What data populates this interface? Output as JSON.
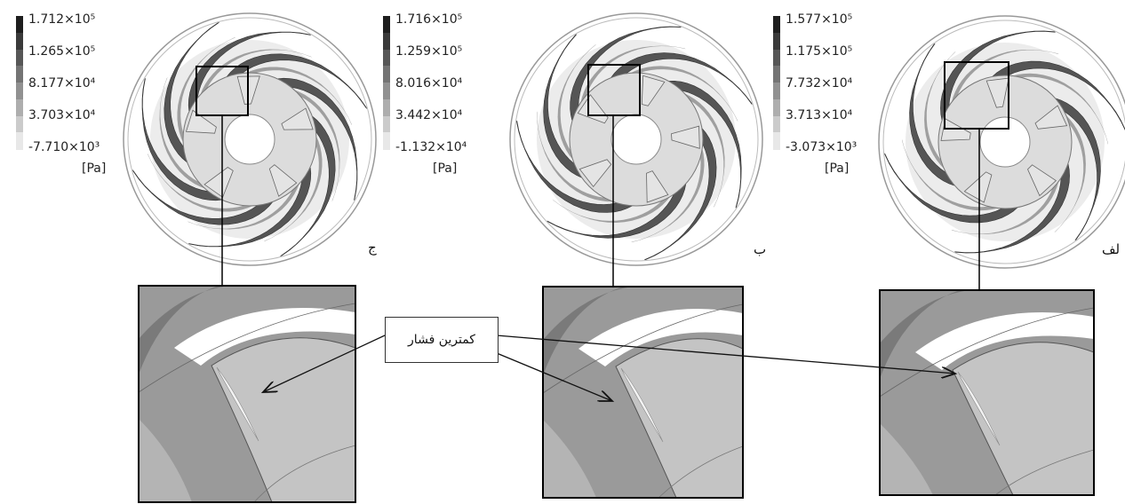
{
  "panels": [
    {
      "label": "ج",
      "legend_values": [
        "1.712×10⁵",
        "1.265×10⁵",
        "8.177×10⁴",
        "3.703×10⁴",
        "-7.710×10³"
      ],
      "unit": "[Pa]"
    },
    {
      "label": "ب",
      "legend_values": [
        "1.716×10⁵",
        "1.259×10⁵",
        "8.016×10⁴",
        "3.442×10⁴",
        "-1.132×10⁴"
      ],
      "unit": "[Pa]"
    },
    {
      "label": "لف",
      "legend_values": [
        "1.577×10⁵",
        "1.175×10⁵",
        "7.732×10⁴",
        "3.713×10⁴",
        "-3.073×10³"
      ],
      "unit": "[Pa]"
    }
  ],
  "callout": {
    "text": "کمترین فشار"
  },
  "colors": {
    "blade_dark": "#555555",
    "blade_mid": "#8c8c8c",
    "blade_light": "#c8c8c8",
    "hub": "#dcdcdc",
    "outline": "#444444",
    "background": "#ffffff"
  },
  "legend_ramp": [
    "#1e1e1e",
    "#3a3a3a",
    "#575757",
    "#747474",
    "#919191",
    "#aeaeae",
    "#cbcbcb",
    "#e8e8e8"
  ]
}
